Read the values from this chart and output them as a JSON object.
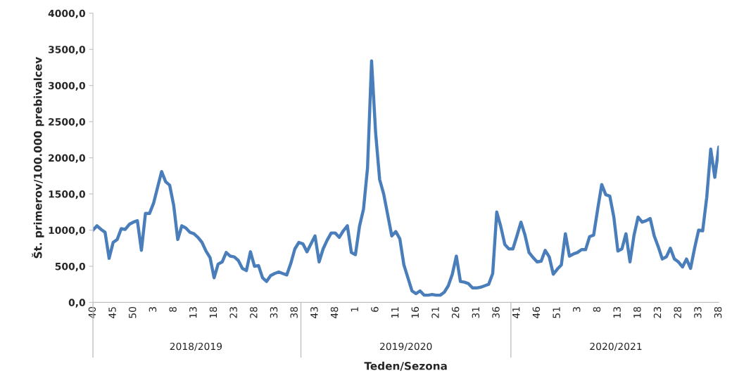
{
  "chart_data": {
    "type": "line",
    "xlabel": "Teden/Sezona",
    "ylabel": "Št. primerov/100.000 prebivalcev",
    "categories": [
      "40",
      null,
      null,
      null,
      null,
      "45",
      null,
      null,
      null,
      null,
      "50",
      null,
      null,
      null,
      null,
      "3",
      null,
      null,
      null,
      null,
      "8",
      null,
      null,
      null,
      null,
      "13",
      null,
      null,
      null,
      null,
      "18",
      null,
      null,
      null,
      null,
      "23",
      null,
      null,
      null,
      null,
      "28",
      null,
      null,
      null,
      null,
      "33",
      null,
      null,
      null,
      null,
      "38",
      null,
      null,
      null,
      null,
      "43",
      null,
      null,
      null,
      null,
      "48",
      null,
      null,
      null,
      null,
      "1",
      null,
      null,
      null,
      null,
      "6",
      null,
      null,
      null,
      null,
      "11",
      null,
      null,
      null,
      null,
      "16",
      null,
      null,
      null,
      null,
      "21",
      null,
      null,
      null,
      null,
      "26",
      null,
      null,
      null,
      null,
      "31",
      null,
      null,
      null,
      null,
      "36",
      null,
      null,
      null,
      null,
      "41",
      null,
      null,
      null,
      null,
      "46",
      null,
      null,
      null,
      null,
      "51",
      null,
      null,
      null,
      null,
      "3",
      null,
      null,
      null,
      null,
      "8",
      null,
      null,
      null,
      null,
      "13",
      null,
      null,
      null,
      null,
      "18",
      null,
      null,
      null,
      null,
      "23",
      null,
      null,
      null,
      null,
      "28",
      null,
      null,
      null,
      null,
      "33",
      null,
      null,
      null,
      null,
      "38"
    ],
    "series": [
      {
        "color": "#4a7ebb",
        "values": [
          1000,
          1060,
          1010,
          970,
          610,
          830,
          870,
          1020,
          1010,
          1080,
          1110,
          1130,
          720,
          1230,
          1230,
          1370,
          1590,
          1810,
          1670,
          1620,
          1340,
          870,
          1060,
          1030,
          970,
          950,
          900,
          830,
          710,
          620,
          340,
          530,
          560,
          690,
          640,
          630,
          580,
          470,
          440,
          700,
          500,
          510,
          340,
          290,
          370,
          400,
          420,
          400,
          380,
          540,
          740,
          830,
          810,
          700,
          810,
          920,
          560,
          740,
          860,
          960,
          960,
          900,
          990,
          1060,
          690,
          660,
          1050,
          1290,
          1860,
          3340,
          2350,
          1700,
          1500,
          1210,
          920,
          980,
          880,
          520,
          340,
          160,
          120,
          160,
          100,
          100,
          110,
          100,
          100,
          140,
          230,
          390,
          640,
          290,
          280,
          260,
          200,
          200,
          210,
          230,
          250,
          400,
          1250,
          1050,
          800,
          740,
          740,
          920,
          1110,
          930,
          690,
          620,
          560,
          570,
          720,
          630,
          390,
          460,
          520,
          950,
          640,
          670,
          690,
          730,
          730,
          910,
          930,
          1290,
          1630,
          1490,
          1470,
          1180,
          710,
          740,
          950,
          560,
          930,
          1180,
          1110,
          1130,
          1160,
          920,
          770,
          600,
          630,
          750,
          600,
          560,
          490,
          600,
          470,
          750,
          1000,
          990,
          1450,
          2120,
          1730,
          2150
        ]
      }
    ],
    "ylim": [
      0,
      4000
    ],
    "yticks": [
      {
        "value": 0,
        "label": "0,0"
      },
      {
        "value": 500,
        "label": "500,0"
      },
      {
        "value": 1000,
        "label": "1000,0"
      },
      {
        "value": 1500,
        "label": "1500,0"
      },
      {
        "value": 2000,
        "label": "2000,0"
      },
      {
        "value": 2500,
        "label": "2500,0"
      },
      {
        "value": 3000,
        "label": "3000,0"
      },
      {
        "value": 3500,
        "label": "3500,0"
      },
      {
        "value": 4000,
        "label": "4000,0"
      }
    ],
    "marker": "none",
    "line_style": "solid",
    "annotations": [
      "2018/2019",
      "2019/2020",
      "2020/2021"
    ]
  }
}
